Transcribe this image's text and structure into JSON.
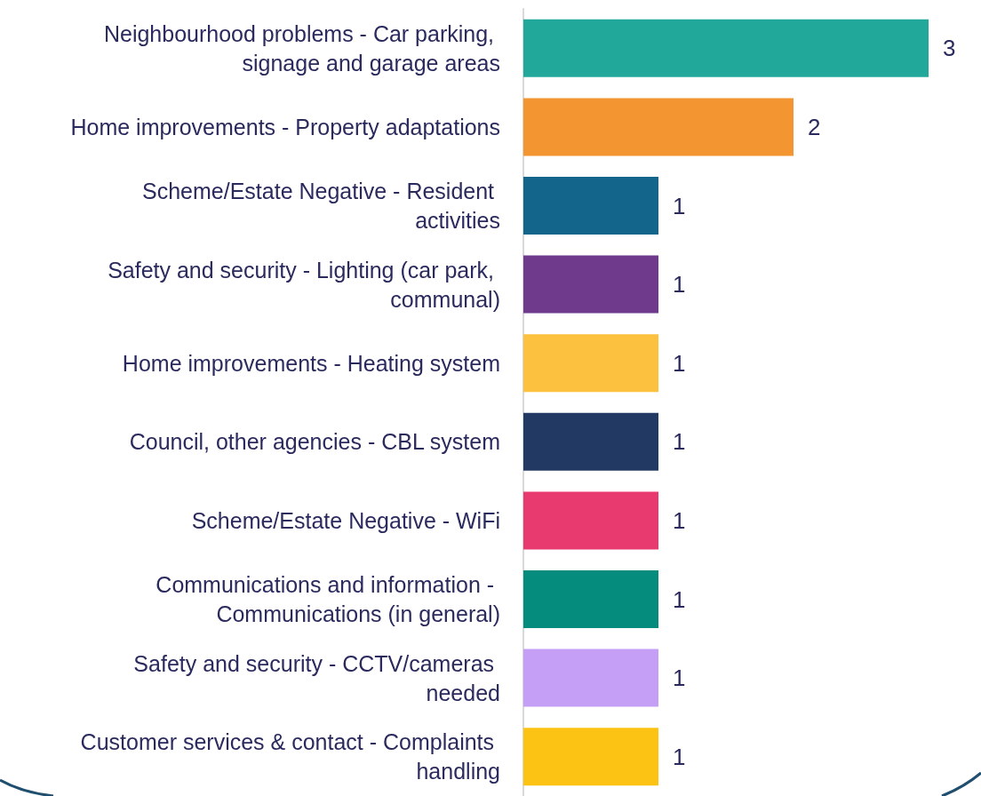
{
  "chart_data": {
    "type": "bar",
    "orientation": "horizontal",
    "data_labels": true,
    "tick_labels": "y",
    "categories": [
      "Neighbourhood problems - Car parking, signage and garage areas",
      "Home improvements - Property adaptations",
      "Scheme/Estate Negative - Resident activities",
      "Safety and security - Lighting (car park, communal)",
      "Home improvements - Heating system",
      "Council, other agencies - CBL system",
      "Scheme/Estate Negative - WiFi",
      "Communications and information - Communications (in general)",
      "Safety and security - CCTV/cameras needed",
      "Customer services & contact - Complaints handling"
    ],
    "values": [
      3,
      2,
      1,
      1,
      1,
      1,
      1,
      1,
      1,
      1
    ],
    "colors": [
      "#22a89a",
      "#f39530",
      "#14658c",
      "#6f3a8c",
      "#fcc13e",
      "#213963",
      "#e83a6f",
      "#068c7c",
      "#c59ff5",
      "#fcc315"
    ]
  }
}
